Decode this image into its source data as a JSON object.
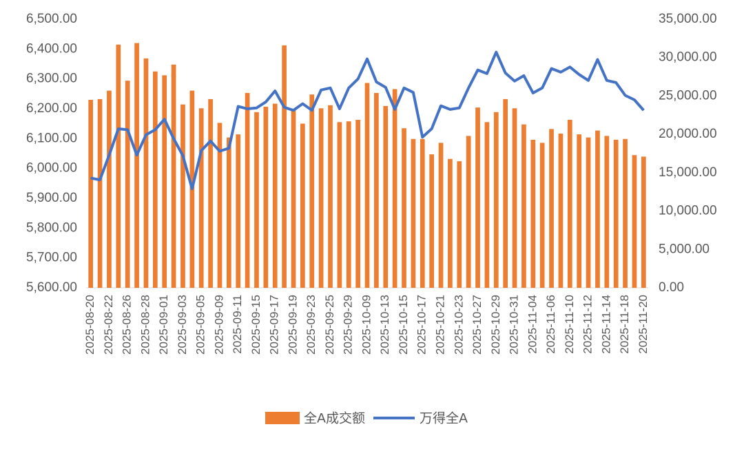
{
  "chart_data": {
    "type": "bar_line",
    "categories": [
      "2025-08-20",
      null,
      "2025-08-22",
      null,
      "2025-08-26",
      null,
      "2025-08-28",
      null,
      "2025-09-01",
      null,
      "2025-09-03",
      null,
      "2025-09-05",
      null,
      "2025-09-09",
      null,
      "2025-09-11",
      null,
      "2025-09-15",
      null,
      "2025-09-17",
      null,
      "2025-09-19",
      null,
      "2025-09-23",
      null,
      "2025-09-25",
      null,
      "2025-09-29",
      null,
      "2025-10-09",
      null,
      "2025-10-13",
      null,
      "2025-10-15",
      null,
      "2025-10-17",
      null,
      "2025-10-21",
      null,
      "2025-10-23",
      null,
      "2025-10-27",
      null,
      "2025-10-29",
      null,
      "2025-10-31",
      null,
      "2025-11-04",
      null,
      "2025-11-06",
      null,
      "2025-11-10",
      null,
      "2025-11-12",
      null,
      "2025-11-14",
      null,
      "2025-11-18",
      null,
      "2025-11-20"
    ],
    "series": [
      {
        "name": "全A成交额",
        "color": "#ed7d31",
        "kind": "bar",
        "axis": "y2",
        "values": [
          24500,
          24600,
          25700,
          31700,
          27000,
          31900,
          29900,
          28200,
          27700,
          29100,
          23900,
          25700,
          23400,
          24600,
          21500,
          19600,
          20000,
          25400,
          22900,
          23600,
          24000,
          31600,
          23300,
          21400,
          25200,
          23400,
          23800,
          21600,
          21700,
          21900,
          26700,
          25400,
          23700,
          25900,
          20800,
          19400,
          19400,
          17400,
          18900,
          16800,
          16500,
          19800,
          23500,
          21600,
          22900,
          24600,
          23400,
          21300,
          19300,
          18900,
          20700,
          20100,
          21900,
          20000,
          19600,
          20500,
          19800,
          19300,
          19400,
          17300,
          17100
        ]
      },
      {
        "name": "万得全A",
        "color": "#4472c4",
        "kind": "line",
        "axis": "y",
        "values": [
          5968,
          5962,
          6045,
          6133,
          6130,
          6045,
          6113,
          6130,
          6165,
          6100,
          6043,
          5932,
          6060,
          6092,
          6058,
          6068,
          6208,
          6200,
          6203,
          6223,
          6260,
          6205,
          6195,
          6217,
          6195,
          6263,
          6270,
          6200,
          6270,
          6300,
          6367,
          6290,
          6272,
          6198,
          6270,
          6255,
          6105,
          6133,
          6210,
          6198,
          6203,
          6270,
          6330,
          6318,
          6390,
          6320,
          6293,
          6311,
          6253,
          6270,
          6335,
          6323,
          6340,
          6315,
          6295,
          6365,
          6295,
          6288,
          6245,
          6230,
          6195
        ]
      }
    ],
    "ylim": [
      5600,
      6500
    ],
    "yticks": [
      {
        "value": 5600,
        "label": "5,600.00"
      },
      {
        "value": 5700,
        "label": "5,700.00"
      },
      {
        "value": 5800,
        "label": "5,800.00"
      },
      {
        "value": 5900,
        "label": "5,900.00"
      },
      {
        "value": 6000,
        "label": "6,000.00"
      },
      {
        "value": 6100,
        "label": "6,100.00"
      },
      {
        "value": 6200,
        "label": "6,200.00"
      },
      {
        "value": 6300,
        "label": "6,300.00"
      },
      {
        "value": 6400,
        "label": "6,400.00"
      },
      {
        "value": 6500,
        "label": "6,500.00"
      }
    ],
    "y2lim": [
      0,
      35000
    ],
    "y2ticks": [
      {
        "value": 0,
        "label": "0.00"
      },
      {
        "value": 5000,
        "label": "5,000.00"
      },
      {
        "value": 10000,
        "label": "10,000.00"
      },
      {
        "value": 15000,
        "label": "15,000.00"
      },
      {
        "value": 20000,
        "label": "20,000.00"
      },
      {
        "value": 25000,
        "label": "25,000.00"
      },
      {
        "value": 30000,
        "label": "30,000.00"
      },
      {
        "value": 35000,
        "label": "35,000.00"
      }
    ],
    "grid": false,
    "legend": "bottom"
  }
}
